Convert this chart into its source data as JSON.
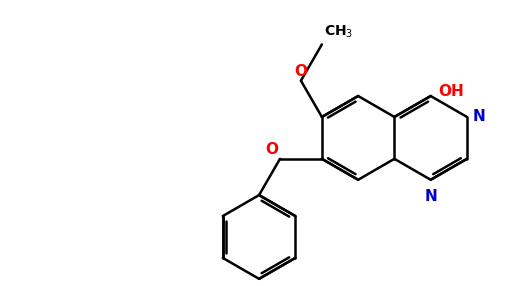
{
  "background_color": "#ffffff",
  "bond_color": "#000000",
  "N_color": "#0000cd",
  "O_color": "#ff0000",
  "line_width": 1.8,
  "figsize": [
    5.12,
    2.86
  ],
  "dpi": 100,
  "xlim": [
    0,
    10
  ],
  "ylim": [
    0,
    5.6
  ]
}
